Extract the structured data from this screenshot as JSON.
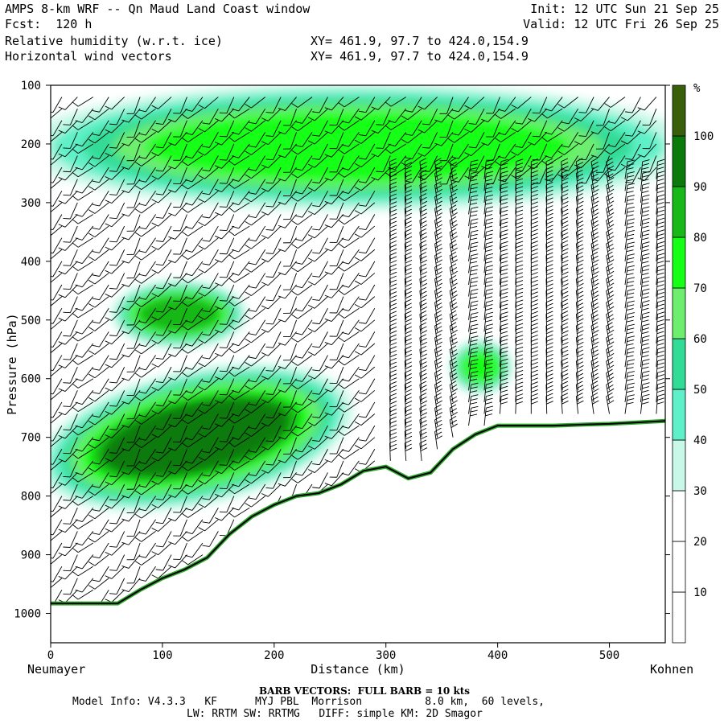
{
  "header": {
    "line1_left": "AMPS 8-km WRF -- Qn Maud Land Coast window",
    "line2_left": "Fcst:  120 h",
    "line3_left": "Relative humidity (w.r.t. ice)",
    "line4_left": "Horizontal wind vectors",
    "line1_right": "Init: 12 UTC Sun 21 Sep 25",
    "line2_right": "Valid: 12 UTC Fri 26 Sep 25",
    "xy1": "XY= 461.9, 97.7 to 424.0,154.9",
    "xy2": "XY= 461.9, 97.7 to 424.0,154.9"
  },
  "chart_data": {
    "type": "heatmap",
    "title": "Relative humidity (w.r.t. ice) cross-section with horizontal wind barbs",
    "xlabel": "Distance (km)",
    "ylabel": "Pressure (hPa)",
    "xlim": [
      0,
      550
    ],
    "ylim": [
      1050,
      100
    ],
    "x_ticks": [
      0,
      100,
      200,
      300,
      400,
      500
    ],
    "y_ticks": [
      100,
      200,
      300,
      400,
      500,
      600,
      700,
      800,
      900,
      1000
    ],
    "left_endpoint": "Neumayer",
    "right_endpoint": "Kohnen",
    "colorbar": {
      "unit": "%",
      "levels": [
        0,
        10,
        20,
        30,
        40,
        50,
        60,
        70,
        80,
        90,
        100,
        110
      ],
      "tick_labels": [
        10,
        20,
        30,
        40,
        50,
        60,
        70,
        80,
        90,
        100
      ],
      "colors": [
        "#ffffff",
        "#ffffff",
        "#ffffff",
        "#c8f8e8",
        "#5ef0c8",
        "#32dc96",
        "#6eee6e",
        "#16ff16",
        "#18b818",
        "#0b7a0b",
        "#3a5f0b"
      ]
    },
    "terrain": {
      "x_km": [
        0,
        20,
        40,
        60,
        80,
        100,
        120,
        140,
        160,
        180,
        200,
        220,
        240,
        260,
        280,
        300,
        320,
        340,
        360,
        380,
        400,
        420,
        450,
        480,
        500,
        520,
        550
      ],
      "p_hPa": [
        983,
        983,
        983,
        983,
        960,
        940,
        925,
        905,
        865,
        835,
        815,
        800,
        795,
        780,
        757,
        750,
        770,
        760,
        720,
        695,
        680,
        680,
        680,
        678,
        677,
        675,
        672
      ]
    },
    "rh_features": [
      {
        "name": "low-level moist band",
        "rh_max_percent": 90,
        "x_range_km": [
          0,
          260
        ],
        "p_range_hPa": [
          600,
          800
        ]
      },
      {
        "name": "mid-level moist core",
        "rh_max_percent": 80,
        "x_range_km": [
          60,
          170
        ],
        "p_range_hPa": [
          440,
          540
        ]
      },
      {
        "name": "upper-level moist layer",
        "rh_max_percent": 70,
        "x_range_km": [
          0,
          550
        ],
        "p_range_hPa": [
          110,
          300
        ]
      },
      {
        "name": "isolated moist patch",
        "rh_max_percent": 70,
        "x_range_km": [
          360,
          410
        ],
        "p_range_hPa": [
          540,
          620
        ]
      }
    ],
    "barbs_note": "Barbs plotted at each column; full barb = 10 kts"
  },
  "footer": {
    "barb_note": "BARB VECTORS:  FULL BARB = 10 kts",
    "model_info": "Model Info: V4.3.3   KF      MYJ PBL  Morrison          8.0 km,  60 levels,",
    "physics": "LW: RRTM SW: RRTMG   DIFF: simple KM: 2D Smagor"
  }
}
